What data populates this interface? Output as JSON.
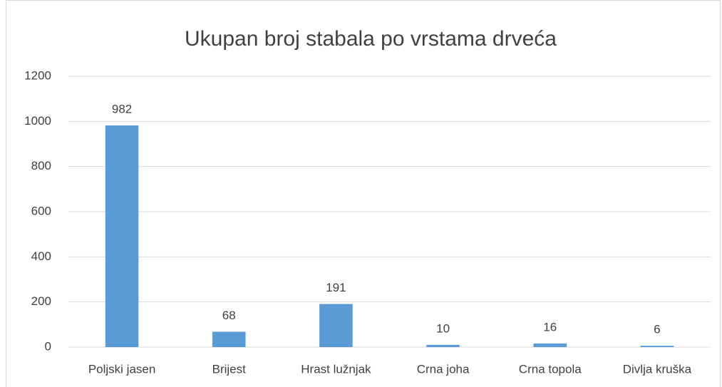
{
  "chart_data": {
    "type": "bar",
    "title": "Ukupan broj stabala po vrstama drveća",
    "categories": [
      "Poljski jasen",
      "Brijest",
      "Hrast lužnjak",
      "Crna joha",
      "Crna topola",
      "Divlja kruška"
    ],
    "values": [
      982,
      68,
      191,
      10,
      16,
      6
    ],
    "color": "#5b9bd5",
    "ylim": [
      0,
      1200
    ],
    "yticks": [
      0,
      200,
      400,
      600,
      800,
      1000,
      1200
    ],
    "grid": true
  }
}
